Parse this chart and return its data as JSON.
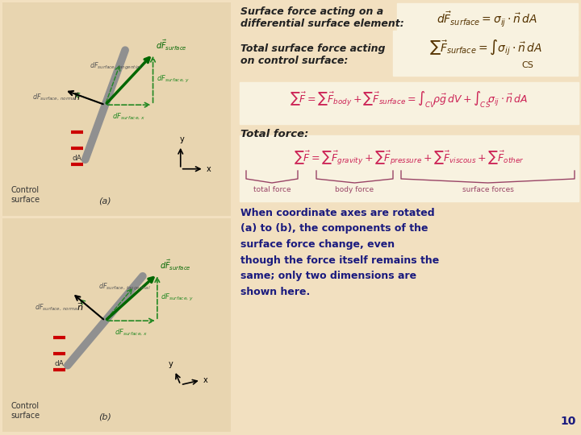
{
  "bg_color": "#f2e0c0",
  "left_bg": "#e8d5b0",
  "box_bg": "#f8f2e0",
  "box_edge": "#d4c090",
  "eq_color": "#cc2255",
  "eq_dark": "#884466",
  "text_italic_color": "#222222",
  "text_blue": "#1a1a7e",
  "green_main": "#006600",
  "green_dashed": "#228822",
  "gray_surface": "#909090",
  "red_dash": "#cc0000",
  "black": "#000000",
  "page_num": "10",
  "title1_line1": "Surface force acting on a",
  "title1_line2": "differential surface element:",
  "title2_line1": "Total surface force acting",
  "title2_line2": "on control surface:",
  "title3": "Total force:",
  "desc": "When coordinate axes are rotated\n(a) to (b), the components of the\nsurface force change, even\nthough the force itself remains the\nsame; only two dimensions are\nshown here."
}
